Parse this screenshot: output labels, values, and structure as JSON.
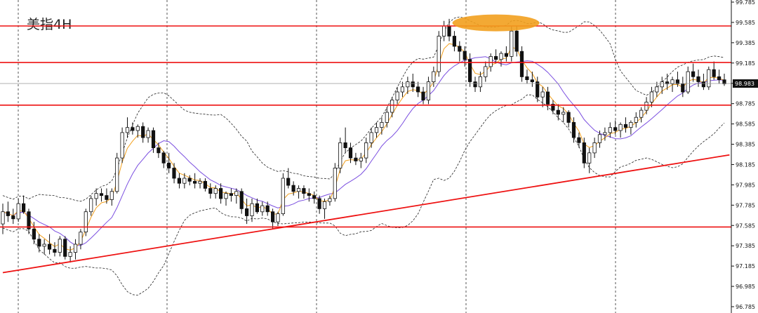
{
  "chart_data": {
    "type": "candlestick",
    "title": "美指4H",
    "ylim": [
      96.785,
      99.785
    ],
    "y_ticks": [
      "99.785",
      "99.585",
      "99.385",
      "99.185",
      "98.985",
      "98.785",
      "98.585",
      "98.385",
      "98.185",
      "97.985",
      "97.785",
      "97.585",
      "97.385",
      "97.185",
      "96.985",
      "96.785"
    ],
    "current_price": "98.983",
    "horizontal_levels": [
      99.55,
      99.19,
      98.77,
      97.57
    ],
    "trendline": {
      "start": [
        0,
        97.12
      ],
      "end": [
        140,
        98.28
      ]
    },
    "highlight_zone_center": [
      95,
      99.58
    ],
    "grid": "vertical-dashed",
    "colors": {
      "levels": "#ee1111",
      "trendline": "#ee1111",
      "highlight": "#f2a01e",
      "ma_fast": "#f2a01e",
      "ma_slow": "#7b4fe0",
      "bands": "#222222",
      "candle": "#111111"
    },
    "candles": [
      [
        97.6,
        97.8,
        97.5,
        97.72
      ],
      [
        97.72,
        97.82,
        97.62,
        97.68
      ],
      [
        97.68,
        97.75,
        97.6,
        97.65
      ],
      [
        97.65,
        97.85,
        97.62,
        97.8
      ],
      [
        97.8,
        97.88,
        97.7,
        97.72
      ],
      [
        97.72,
        97.75,
        97.5,
        97.55
      ],
      [
        97.55,
        97.62,
        97.4,
        97.45
      ],
      [
        97.45,
        97.5,
        97.32,
        97.38
      ],
      [
        97.38,
        97.45,
        97.3,
        97.4
      ],
      [
        97.4,
        97.5,
        97.3,
        97.35
      ],
      [
        97.35,
        97.42,
        97.28,
        97.32
      ],
      [
        97.32,
        97.48,
        97.28,
        97.45
      ],
      [
        97.45,
        97.48,
        97.25,
        97.28
      ],
      [
        97.28,
        97.38,
        97.22,
        97.32
      ],
      [
        97.32,
        97.45,
        97.25,
        97.4
      ],
      [
        97.4,
        97.55,
        97.35,
        97.52
      ],
      [
        97.52,
        97.75,
        97.48,
        97.72
      ],
      [
        97.72,
        97.88,
        97.68,
        97.85
      ],
      [
        97.85,
        97.95,
        97.78,
        97.9
      ],
      [
        97.9,
        97.95,
        97.82,
        97.88
      ],
      [
        97.88,
        97.95,
        97.8,
        97.84
      ],
      [
        97.84,
        97.95,
        97.78,
        97.92
      ],
      [
        97.92,
        98.3,
        97.9,
        98.25
      ],
      [
        98.25,
        98.55,
        98.2,
        98.5
      ],
      [
        98.5,
        98.65,
        98.45,
        98.55
      ],
      [
        98.55,
        98.6,
        98.48,
        98.52
      ],
      [
        98.52,
        98.58,
        98.45,
        98.56
      ],
      [
        98.56,
        98.6,
        98.4,
        98.45
      ],
      [
        98.45,
        98.55,
        98.4,
        98.52
      ],
      [
        98.52,
        98.55,
        98.3,
        98.35
      ],
      [
        98.35,
        98.4,
        98.25,
        98.3
      ],
      [
        98.3,
        98.32,
        98.15,
        98.2
      ],
      [
        98.2,
        98.3,
        98.1,
        98.15
      ],
      [
        98.15,
        98.2,
        98.0,
        98.05
      ],
      [
        98.05,
        98.1,
        97.95,
        98.0
      ],
      [
        98.0,
        98.1,
        97.95,
        98.05
      ],
      [
        98.05,
        98.08,
        97.98,
        98.02
      ],
      [
        98.02,
        98.1,
        97.95,
        98.0
      ],
      [
        98.0,
        98.05,
        97.95,
        98.02
      ],
      [
        98.02,
        98.05,
        97.92,
        97.95
      ],
      [
        97.95,
        98.0,
        97.85,
        97.9
      ],
      [
        97.9,
        97.98,
        97.85,
        97.95
      ],
      [
        97.95,
        98.0,
        97.8,
        97.85
      ],
      [
        97.85,
        97.92,
        97.78,
        97.9
      ],
      [
        97.9,
        97.95,
        97.82,
        97.88
      ],
      [
        97.88,
        97.95,
        97.8,
        97.92
      ],
      [
        97.92,
        97.95,
        97.7,
        97.75
      ],
      [
        97.75,
        97.85,
        97.6,
        97.68
      ],
      [
        97.68,
        97.85,
        97.62,
        97.8
      ],
      [
        97.8,
        97.85,
        97.7,
        97.72
      ],
      [
        97.72,
        97.82,
        97.68,
        97.78
      ],
      [
        97.78,
        97.82,
        97.68,
        97.72
      ],
      [
        97.72,
        97.75,
        97.55,
        97.62
      ],
      [
        97.62,
        97.72,
        97.58,
        97.7
      ],
      [
        97.7,
        98.1,
        97.68,
        98.05
      ],
      [
        98.05,
        98.15,
        97.95,
        97.98
      ],
      [
        97.98,
        98.02,
        97.88,
        97.92
      ],
      [
        97.92,
        97.98,
        97.85,
        97.95
      ],
      [
        97.95,
        97.98,
        97.85,
        97.9
      ],
      [
        97.9,
        97.95,
        97.82,
        97.88
      ],
      [
        97.88,
        97.92,
        97.8,
        97.85
      ],
      [
        97.85,
        97.88,
        97.7,
        97.75
      ],
      [
        97.75,
        97.85,
        97.65,
        97.82
      ],
      [
        97.82,
        97.88,
        97.78,
        97.85
      ],
      [
        97.85,
        98.2,
        97.82,
        98.15
      ],
      [
        98.15,
        98.45,
        98.1,
        98.4
      ],
      [
        98.4,
        98.55,
        98.3,
        98.35
      ],
      [
        98.35,
        98.4,
        98.2,
        98.25
      ],
      [
        98.25,
        98.3,
        98.18,
        98.22
      ],
      [
        98.22,
        98.3,
        98.15,
        98.25
      ],
      [
        98.25,
        98.45,
        98.2,
        98.4
      ],
      [
        98.4,
        98.55,
        98.35,
        98.5
      ],
      [
        98.5,
        98.6,
        98.45,
        98.55
      ],
      [
        98.55,
        98.65,
        98.48,
        98.6
      ],
      [
        98.6,
        98.75,
        98.55,
        98.7
      ],
      [
        98.7,
        98.85,
        98.65,
        98.82
      ],
      [
        98.82,
        98.95,
        98.78,
        98.9
      ],
      [
        98.9,
        99.0,
        98.85,
        98.95
      ],
      [
        98.95,
        99.05,
        98.88,
        99.0
      ],
      [
        99.0,
        99.08,
        98.9,
        98.95
      ],
      [
        98.95,
        99.0,
        98.85,
        98.9
      ],
      [
        98.9,
        98.95,
        98.78,
        98.82
      ],
      [
        98.82,
        99.05,
        98.78,
        99.0
      ],
      [
        99.0,
        99.15,
        98.95,
        99.1
      ],
      [
        99.1,
        99.5,
        99.05,
        99.45
      ],
      [
        99.45,
        99.6,
        99.4,
        99.55
      ],
      [
        99.55,
        99.62,
        99.4,
        99.45
      ],
      [
        99.45,
        99.5,
        99.3,
        99.35
      ],
      [
        99.35,
        99.4,
        99.2,
        99.3
      ],
      [
        99.3,
        99.35,
        99.15,
        99.22
      ],
      [
        99.22,
        99.28,
        98.95,
        99.0
      ],
      [
        99.0,
        99.05,
        98.9,
        98.95
      ],
      [
        98.95,
        99.1,
        98.9,
        99.05
      ],
      [
        99.05,
        99.2,
        99.0,
        99.15
      ],
      [
        99.15,
        99.28,
        99.1,
        99.25
      ],
      [
        99.25,
        99.32,
        99.18,
        99.22
      ],
      [
        99.22,
        99.3,
        99.15,
        99.28
      ],
      [
        99.28,
        99.35,
        99.2,
        99.25
      ],
      [
        99.25,
        99.55,
        99.2,
        99.5
      ],
      [
        99.5,
        99.55,
        99.25,
        99.3
      ],
      [
        99.3,
        99.35,
        99.0,
        99.05
      ],
      [
        99.05,
        99.12,
        98.98,
        99.02
      ],
      [
        99.02,
        99.1,
        98.95,
        99.0
      ],
      [
        99.0,
        99.05,
        98.8,
        98.85
      ],
      [
        98.85,
        98.95,
        98.75,
        98.9
      ],
      [
        98.9,
        98.95,
        98.72,
        98.78
      ],
      [
        98.78,
        98.82,
        98.68,
        98.72
      ],
      [
        98.72,
        98.78,
        98.62,
        98.68
      ],
      [
        98.68,
        98.75,
        98.6,
        98.7
      ],
      [
        98.7,
        98.72,
        98.55,
        98.6
      ],
      [
        98.6,
        98.65,
        98.4,
        98.45
      ],
      [
        98.45,
        98.5,
        98.35,
        98.4
      ],
      [
        98.4,
        98.45,
        98.15,
        98.2
      ],
      [
        98.2,
        98.35,
        98.1,
        98.3
      ],
      [
        98.3,
        98.45,
        98.25,
        98.4
      ],
      [
        98.4,
        98.52,
        98.35,
        98.48
      ],
      [
        98.48,
        98.55,
        98.42,
        98.5
      ],
      [
        98.5,
        98.6,
        98.45,
        98.55
      ],
      [
        98.55,
        98.62,
        98.48,
        98.52
      ],
      [
        98.52,
        98.6,
        98.45,
        98.58
      ],
      [
        98.58,
        98.65,
        98.5,
        98.55
      ],
      [
        98.55,
        98.62,
        98.48,
        98.6
      ],
      [
        98.6,
        98.7,
        98.55,
        98.65
      ],
      [
        98.65,
        98.75,
        98.6,
        98.72
      ],
      [
        98.72,
        98.85,
        98.68,
        98.8
      ],
      [
        98.8,
        98.95,
        98.75,
        98.9
      ],
      [
        98.9,
        99.0,
        98.85,
        98.95
      ],
      [
        98.95,
        99.05,
        98.88,
        99.0
      ],
      [
        99.0,
        99.08,
        98.92,
        98.98
      ],
      [
        98.98,
        99.05,
        98.9,
        99.02
      ],
      [
        99.02,
        99.1,
        98.95,
        98.98
      ],
      [
        98.98,
        99.05,
        98.85,
        98.9
      ],
      [
        98.9,
        99.15,
        98.88,
        99.1
      ],
      [
        99.1,
        99.18,
        99.0,
        99.05
      ],
      [
        99.05,
        99.12,
        98.95,
        99.0
      ],
      [
        99.0,
        99.08,
        98.92,
        98.95
      ],
      [
        98.95,
        99.15,
        98.92,
        99.12
      ],
      [
        99.12,
        99.2,
        99.02,
        99.05
      ],
      [
        99.05,
        99.12,
        98.98,
        99.02
      ],
      [
        99.02,
        99.08,
        98.96,
        98.98
      ]
    ]
  }
}
